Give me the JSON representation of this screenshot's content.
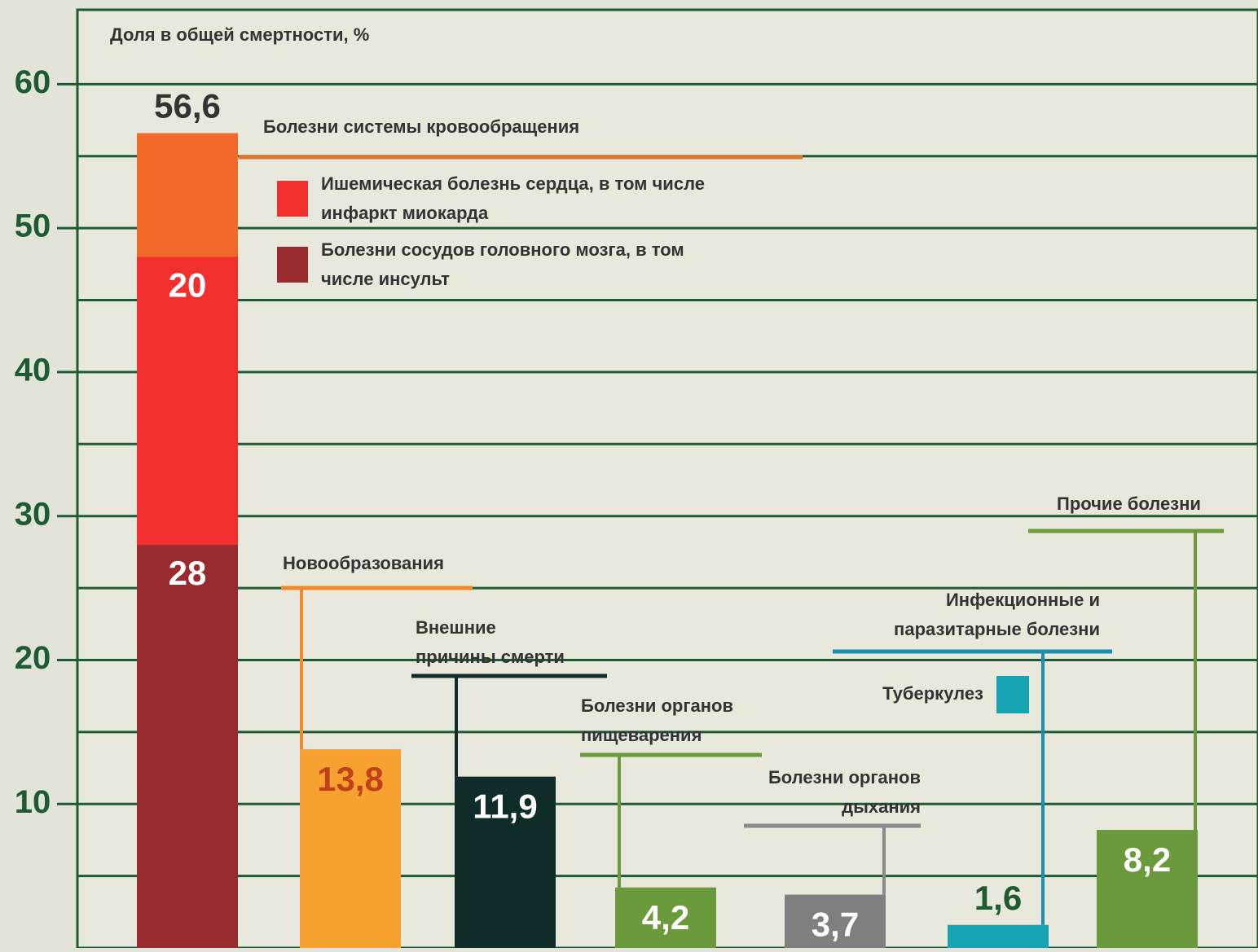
{
  "chart_data": {
    "type": "bar",
    "title": "Доля в общей смертности, %",
    "categories": [
      [
        "Болезни системы кровообращения"
      ],
      [
        "Новообразования"
      ],
      [
        "Внешние",
        "причины смерти"
      ],
      [
        "Болезни органов",
        "пищеварения"
      ],
      [
        "Болезни органов",
        "дыхания"
      ],
      [
        "Инфекционные и",
        "паразитарные болезни"
      ],
      [
        "Прочие болезни"
      ]
    ],
    "values": [
      56.6,
      13.8,
      11.9,
      4.2,
      3.7,
      1.6,
      8.2
    ],
    "value_labels": [
      "56,6",
      "13,8",
      "11,9",
      "4,2",
      "3,7",
      "1,6",
      "8,2"
    ],
    "colors": [
      "#f26a2a",
      "#f7a131",
      "#0f2b2a",
      "#6a9a3c",
      "#7f7f7f",
      "#16a3b2",
      "#6a9a3c"
    ],
    "segments": [
      {
        "name": [
          "Болезни сосудов головного мозга, в том",
          "числе инсульт"
        ],
        "value": 28,
        "color": "#972b2e"
      },
      {
        "name": [
          "Ишемическая болезнь сердца, в том числе",
          "инфаркт миокарда"
        ],
        "value": 20,
        "color": "#f22f2f"
      }
    ],
    "legend_extra": {
      "name": "Туберкулез",
      "color": "#16a3b2"
    },
    "ylim": [
      0,
      65
    ],
    "yticks": [
      10,
      20,
      30,
      40,
      50,
      60
    ],
    "ygrid": [
      5,
      10,
      15,
      20,
      25,
      30,
      35,
      40,
      45,
      50,
      55,
      60
    ],
    "grid": true
  }
}
